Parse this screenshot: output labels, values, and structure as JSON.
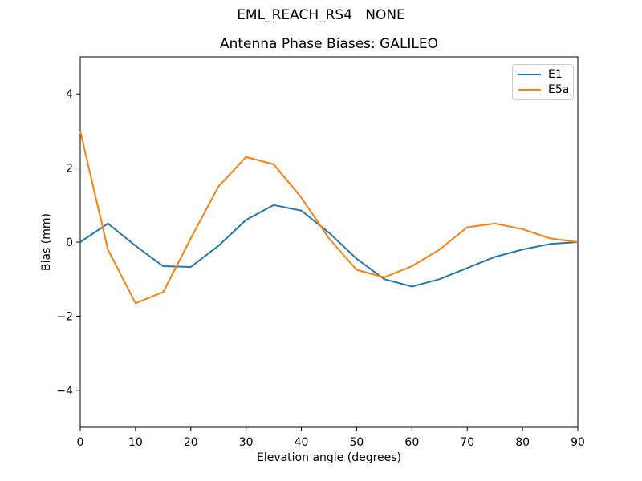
{
  "figure": {
    "suptitle": "EML_REACH_RS4   NONE",
    "axes_title": "Antenna Phase Biases: GALILEO"
  },
  "chart_data": {
    "type": "line",
    "suptitle": "EML_REACH_RS4   NONE",
    "title": "Antenna Phase Biases: GALILEO",
    "xlabel": "Elevation angle (degrees)",
    "ylabel": "Bias (mm)",
    "xlim": [
      0,
      90
    ],
    "ylim": [
      -5,
      5
    ],
    "xticks": [
      0,
      10,
      20,
      30,
      40,
      50,
      60,
      70,
      80,
      90
    ],
    "yticks": [
      -4,
      -2,
      0,
      2,
      4
    ],
    "grid": false,
    "legend_position": "upper right",
    "x": [
      0,
      5,
      10,
      15,
      20,
      25,
      30,
      35,
      40,
      45,
      50,
      55,
      60,
      65,
      70,
      75,
      80,
      85,
      90
    ],
    "series": [
      {
        "name": "E1",
        "color": "#1f77b4",
        "values": [
          0.0,
          0.5,
          -0.1,
          -0.65,
          -0.67,
          -0.1,
          0.6,
          1.0,
          0.85,
          0.25,
          -0.45,
          -1.0,
          -1.2,
          -1.0,
          -0.7,
          -0.4,
          -0.2,
          -0.05,
          0.0
        ]
      },
      {
        "name": "E5a",
        "color": "#ff7f0e",
        "values": [
          3.0,
          -0.2,
          -1.65,
          -1.35,
          0.1,
          1.5,
          2.3,
          2.1,
          1.2,
          0.1,
          -0.75,
          -0.95,
          -0.65,
          -0.2,
          0.4,
          0.5,
          0.35,
          0.1,
          0.0
        ]
      }
    ]
  }
}
